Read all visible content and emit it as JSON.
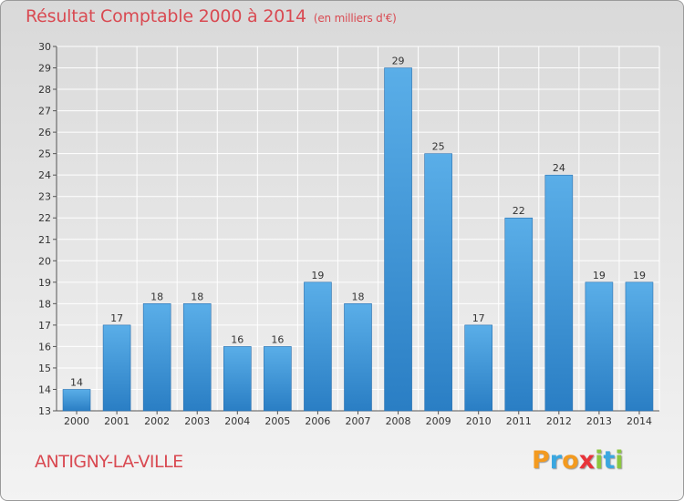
{
  "header": {
    "title": "Résultat Comptable 2000 à 2014",
    "subtitle": "(en milliers d'€)"
  },
  "footer": {
    "commune": "ANTIGNY-LA-VILLE",
    "logo_text": "Proxiti",
    "logo_colors": [
      "#f39a1f",
      "#3aa7e0",
      "#f39a1f",
      "#e8333a",
      "#8cc63f",
      "#3aa7e0",
      "#8cc63f"
    ]
  },
  "colors": {
    "title": "#d94a52",
    "bar_light": "#5aaee8",
    "bar_dark": "#2a7ec4",
    "grid": "#ffffff"
  },
  "chart_data": {
    "type": "bar",
    "categories": [
      "2000",
      "2001",
      "2002",
      "2003",
      "2004",
      "2005",
      "2006",
      "2007",
      "2008",
      "2009",
      "2010",
      "2011",
      "2012",
      "2013",
      "2014"
    ],
    "values": [
      14,
      17,
      18,
      18,
      16,
      16,
      19,
      18,
      29,
      25,
      17,
      22,
      24,
      19,
      19
    ],
    "title": "Résultat Comptable 2000 à 2014",
    "xlabel": "",
    "ylabel": "",
    "ylim": [
      13,
      30
    ],
    "yticks": [
      "13",
      "14",
      "15",
      "16",
      "17",
      "18",
      "19",
      "20",
      "21",
      "22",
      "23",
      "24",
      "25",
      "26",
      "27",
      "28",
      "29",
      "30"
    ],
    "grid": true,
    "data_labels": true
  }
}
